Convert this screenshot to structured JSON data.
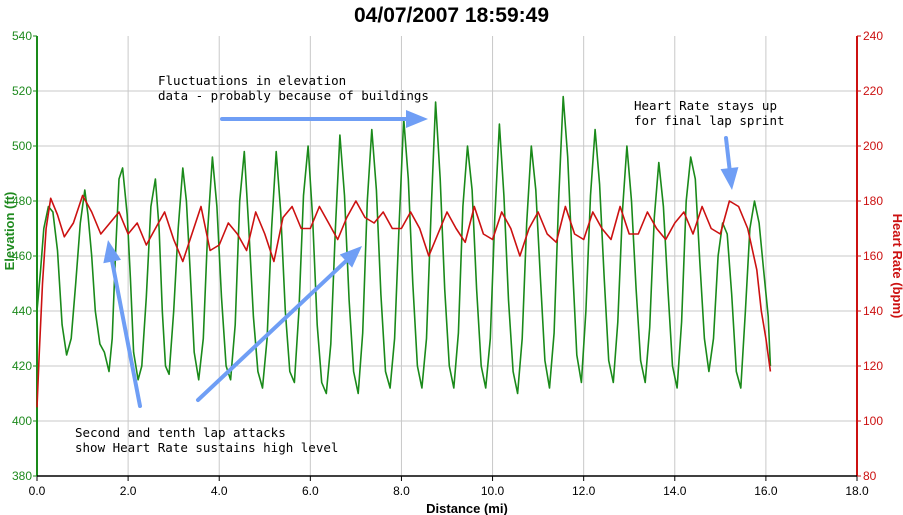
{
  "chart_data": {
    "type": "line",
    "title": "04/07/2007 18:59:49",
    "xlabel": "Distance (mi)",
    "ylabel_left": "Elevation (ft)",
    "ylabel_right": "Heart Rate (bpm)",
    "xlim": [
      0,
      18
    ],
    "ylim_left": [
      380,
      540
    ],
    "ylim_right": [
      80,
      240
    ],
    "x_ticks": [
      "0.0",
      "2.0",
      "4.0",
      "6.0",
      "8.0",
      "10.0",
      "12.0",
      "14.0",
      "16.0",
      "18.0"
    ],
    "y_left_ticks": [
      "380",
      "400",
      "420",
      "440",
      "460",
      "480",
      "500",
      "520",
      "540"
    ],
    "y_right_ticks": [
      "80",
      "100",
      "120",
      "140",
      "160",
      "180",
      "200",
      "220",
      "240"
    ],
    "grid": true,
    "series": [
      {
        "name": "Elevation (ft)",
        "axis": "left",
        "color": "#1a8a1a",
        "x": [
          0.0,
          0.08,
          0.15,
          0.25,
          0.35,
          0.45,
          0.55,
          0.65,
          0.75,
          0.85,
          0.95,
          1.05,
          1.12,
          1.2,
          1.28,
          1.38,
          1.48,
          1.58,
          1.65,
          1.72,
          1.8,
          1.88,
          1.98,
          2.05,
          2.12,
          2.22,
          2.3,
          2.4,
          2.5,
          2.6,
          2.68,
          2.75,
          2.82,
          2.9,
          3.0,
          3.1,
          3.2,
          3.28,
          3.36,
          3.45,
          3.55,
          3.65,
          3.75,
          3.85,
          3.95,
          4.05,
          4.15,
          4.25,
          4.35,
          4.45,
          4.55,
          4.65,
          4.75,
          4.85,
          4.95,
          5.05,
          5.15,
          5.25,
          5.35,
          5.45,
          5.55,
          5.65,
          5.75,
          5.85,
          5.95,
          6.05,
          6.15,
          6.25,
          6.35,
          6.45,
          6.55,
          6.65,
          6.75,
          6.85,
          6.95,
          7.05,
          7.15,
          7.25,
          7.35,
          7.45,
          7.55,
          7.65,
          7.75,
          7.85,
          7.95,
          8.05,
          8.15,
          8.25,
          8.35,
          8.45,
          8.55,
          8.65,
          8.75,
          8.85,
          8.95,
          9.05,
          9.15,
          9.25,
          9.35,
          9.45,
          9.55,
          9.65,
          9.75,
          9.85,
          9.95,
          10.05,
          10.15,
          10.25,
          10.35,
          10.45,
          10.55,
          10.65,
          10.75,
          10.85,
          10.95,
          11.05,
          11.15,
          11.25,
          11.35,
          11.45,
          11.55,
          11.65,
          11.75,
          11.85,
          11.95,
          12.05,
          12.15,
          12.25,
          12.35,
          12.45,
          12.55,
          12.65,
          12.75,
          12.85,
          12.95,
          13.05,
          13.15,
          13.25,
          13.35,
          13.45,
          13.55,
          13.65,
          13.75,
          13.85,
          13.95,
          14.05,
          14.15,
          14.25,
          14.35,
          14.45,
          14.55,
          14.65,
          14.75,
          14.85,
          14.95,
          15.05,
          15.15,
          15.25,
          15.35,
          15.45,
          15.55,
          15.65,
          15.75,
          15.85,
          15.95,
          16.05,
          16.1
        ],
        "y": [
          440,
          455,
          470,
          478,
          476,
          462,
          435,
          424,
          430,
          450,
          472,
          484,
          475,
          460,
          440,
          428,
          425,
          418,
          430,
          460,
          488,
          492,
          475,
          452,
          425,
          415,
          420,
          445,
          478,
          488,
          470,
          440,
          420,
          417,
          440,
          470,
          492,
          480,
          455,
          425,
          415,
          430,
          470,
          496,
          478,
          445,
          420,
          415,
          435,
          480,
          498,
          470,
          438,
          418,
          412,
          430,
          470,
          498,
          476,
          440,
          418,
          414,
          440,
          482,
          500,
          474,
          435,
          414,
          410,
          428,
          470,
          504,
          482,
          444,
          418,
          410,
          432,
          480,
          506,
          484,
          446,
          418,
          412,
          430,
          472,
          510,
          488,
          450,
          420,
          412,
          430,
          476,
          516,
          488,
          448,
          420,
          412,
          432,
          478,
          500,
          484,
          448,
          420,
          412,
          430,
          474,
          508,
          482,
          444,
          418,
          410,
          430,
          472,
          500,
          484,
          452,
          422,
          412,
          432,
          480,
          518,
          496,
          458,
          424,
          414,
          440,
          482,
          506,
          486,
          452,
          422,
          414,
          436,
          476,
          500,
          480,
          448,
          422,
          414,
          434,
          474,
          494,
          478,
          448,
          420,
          412,
          436,
          480,
          496,
          488,
          458,
          430,
          418,
          430,
          460,
          472,
          468,
          446,
          418,
          412,
          440,
          470,
          480,
          472,
          455,
          438,
          420
        ]
      },
      {
        "name": "Heart Rate (bpm)",
        "axis": "right",
        "color": "#cc1111",
        "x": [
          0.0,
          0.05,
          0.12,
          0.2,
          0.3,
          0.45,
          0.6,
          0.8,
          1.0,
          1.2,
          1.4,
          1.6,
          1.8,
          2.0,
          2.2,
          2.4,
          2.6,
          2.8,
          3.0,
          3.2,
          3.4,
          3.6,
          3.8,
          4.0,
          4.2,
          4.4,
          4.6,
          4.8,
          5.0,
          5.2,
          5.4,
          5.6,
          5.8,
          6.0,
          6.2,
          6.4,
          6.6,
          6.8,
          7.0,
          7.2,
          7.4,
          7.6,
          7.8,
          8.0,
          8.2,
          8.4,
          8.6,
          8.8,
          9.0,
          9.2,
          9.4,
          9.6,
          9.8,
          10.0,
          10.2,
          10.4,
          10.6,
          10.8,
          11.0,
          11.2,
          11.4,
          11.6,
          11.8,
          12.0,
          12.2,
          12.4,
          12.6,
          12.8,
          13.0,
          13.2,
          13.4,
          13.6,
          13.8,
          14.0,
          14.2,
          14.4,
          14.6,
          14.8,
          15.0,
          15.2,
          15.4,
          15.6,
          15.8,
          15.9,
          16.0,
          16.1
        ],
        "y": [
          105,
          125,
          150,
          170,
          181,
          175,
          167,
          172,
          182,
          176,
          168,
          172,
          176,
          168,
          172,
          164,
          170,
          176,
          166,
          158,
          168,
          178,
          162,
          164,
          172,
          168,
          162,
          176,
          168,
          158,
          174,
          178,
          170,
          170,
          178,
          172,
          166,
          174,
          180,
          174,
          172,
          176,
          170,
          170,
          176,
          170,
          160,
          168,
          176,
          170,
          165,
          178,
          168,
          166,
          176,
          170,
          160,
          170,
          176,
          168,
          165,
          178,
          168,
          166,
          176,
          170,
          166,
          178,
          168,
          168,
          176,
          170,
          166,
          172,
          176,
          168,
          178,
          170,
          168,
          180,
          178,
          170,
          155,
          140,
          130,
          118
        ]
      }
    ],
    "annotations": [
      {
        "lines": [
          "Fluctuations in elevation",
          "data - probably because of buildings"
        ]
      },
      {
        "lines": [
          "Heart Rate stays up",
          "for final lap sprint"
        ]
      },
      {
        "lines": [
          "Second and tenth lap attacks",
          "show Heart Rate sustains high level"
        ]
      }
    ]
  }
}
